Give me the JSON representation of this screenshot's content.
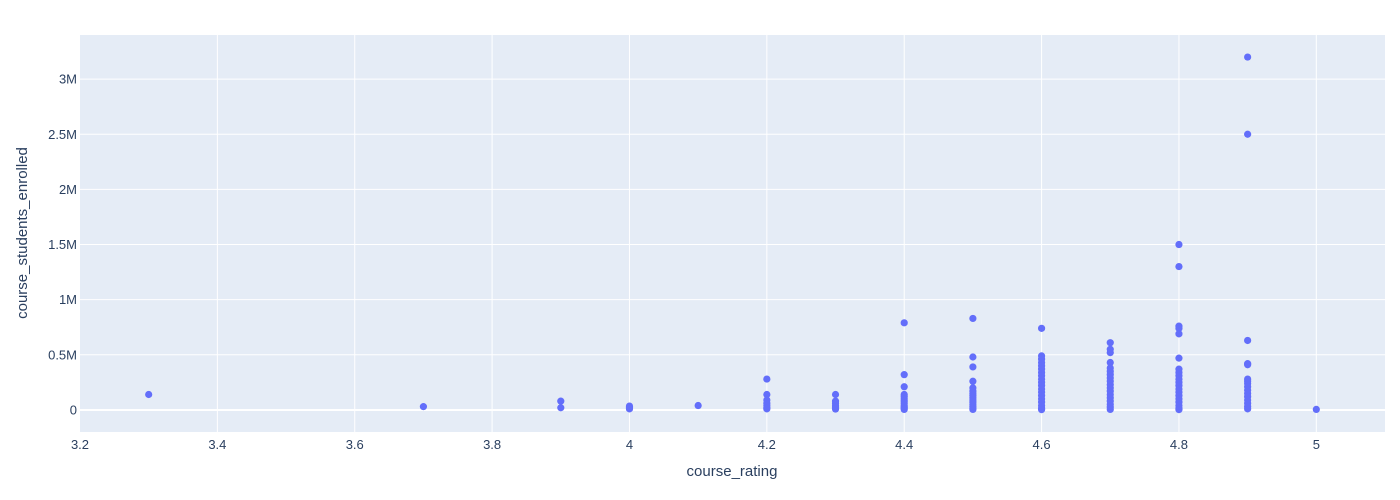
{
  "chart_data": {
    "type": "scatter",
    "title": "",
    "xlabel": "course_rating",
    "ylabel": "course_students_enrolled",
    "xlim": [
      3.2,
      5.1
    ],
    "ylim": [
      -200000,
      3400000
    ],
    "grid": true,
    "x_ticks": [
      {
        "value": 3.2,
        "label": "3.2"
      },
      {
        "value": 3.4,
        "label": "3.4"
      },
      {
        "value": 3.6,
        "label": "3.6"
      },
      {
        "value": 3.8,
        "label": "3.8"
      },
      {
        "value": 4.0,
        "label": "4"
      },
      {
        "value": 4.2,
        "label": "4.2"
      },
      {
        "value": 4.4,
        "label": "4.4"
      },
      {
        "value": 4.6,
        "label": "4.6"
      },
      {
        "value": 4.8,
        "label": "4.8"
      },
      {
        "value": 5.0,
        "label": "5"
      }
    ],
    "y_ticks": [
      {
        "value": 0,
        "label": "0"
      },
      {
        "value": 500000,
        "label": "0.5M"
      },
      {
        "value": 1000000,
        "label": "1M"
      },
      {
        "value": 1500000,
        "label": "1.5M"
      },
      {
        "value": 2000000,
        "label": "2M"
      },
      {
        "value": 2500000,
        "label": "2.5M"
      },
      {
        "value": 3000000,
        "label": "3M"
      }
    ],
    "series": [
      {
        "color": "#636efa",
        "points": [
          [
            3.3,
            140000
          ],
          [
            3.7,
            30000
          ],
          [
            3.9,
            80000
          ],
          [
            3.9,
            20000
          ],
          [
            4.0,
            35000
          ],
          [
            4.0,
            20000
          ],
          [
            4.0,
            10000
          ],
          [
            4.1,
            40000
          ],
          [
            4.2,
            280000
          ],
          [
            4.2,
            140000
          ],
          [
            4.2,
            90000
          ],
          [
            4.2,
            60000
          ],
          [
            4.2,
            40000
          ],
          [
            4.2,
            20000
          ],
          [
            4.2,
            10000
          ],
          [
            4.3,
            140000
          ],
          [
            4.3,
            80000
          ],
          [
            4.3,
            60000
          ],
          [
            4.3,
            40000
          ],
          [
            4.3,
            25000
          ],
          [
            4.3,
            15000
          ],
          [
            4.3,
            8000
          ],
          [
            4.4,
            790000
          ],
          [
            4.4,
            320000
          ],
          [
            4.4,
            210000
          ],
          [
            4.4,
            140000
          ],
          [
            4.4,
            120000
          ],
          [
            4.4,
            100000
          ],
          [
            4.4,
            80000
          ],
          [
            4.4,
            60000
          ],
          [
            4.4,
            40000
          ],
          [
            4.4,
            25000
          ],
          [
            4.4,
            15000
          ],
          [
            4.4,
            5000
          ],
          [
            4.5,
            830000
          ],
          [
            4.5,
            480000
          ],
          [
            4.5,
            390000
          ],
          [
            4.5,
            260000
          ],
          [
            4.5,
            200000
          ],
          [
            4.5,
            170000
          ],
          [
            4.5,
            150000
          ],
          [
            4.5,
            130000
          ],
          [
            4.5,
            110000
          ],
          [
            4.5,
            90000
          ],
          [
            4.5,
            70000
          ],
          [
            4.5,
            50000
          ],
          [
            4.5,
            30000
          ],
          [
            4.5,
            15000
          ],
          [
            4.5,
            5000
          ],
          [
            4.6,
            740000
          ],
          [
            4.6,
            490000
          ],
          [
            4.6,
            460000
          ],
          [
            4.6,
            430000
          ],
          [
            4.6,
            400000
          ],
          [
            4.6,
            370000
          ],
          [
            4.6,
            340000
          ],
          [
            4.6,
            310000
          ],
          [
            4.6,
            280000
          ],
          [
            4.6,
            250000
          ],
          [
            4.6,
            220000
          ],
          [
            4.6,
            190000
          ],
          [
            4.6,
            160000
          ],
          [
            4.6,
            130000
          ],
          [
            4.6,
            100000
          ],
          [
            4.6,
            70000
          ],
          [
            4.6,
            40000
          ],
          [
            4.6,
            15000
          ],
          [
            4.6,
            3000
          ],
          [
            4.7,
            610000
          ],
          [
            4.7,
            550000
          ],
          [
            4.7,
            520000
          ],
          [
            4.7,
            430000
          ],
          [
            4.7,
            380000
          ],
          [
            4.7,
            350000
          ],
          [
            4.7,
            320000
          ],
          [
            4.7,
            290000
          ],
          [
            4.7,
            260000
          ],
          [
            4.7,
            230000
          ],
          [
            4.7,
            200000
          ],
          [
            4.7,
            170000
          ],
          [
            4.7,
            140000
          ],
          [
            4.7,
            110000
          ],
          [
            4.7,
            80000
          ],
          [
            4.7,
            50000
          ],
          [
            4.7,
            25000
          ],
          [
            4.7,
            5000
          ],
          [
            4.8,
            1500000
          ],
          [
            4.8,
            1300000
          ],
          [
            4.8,
            760000
          ],
          [
            4.8,
            740000
          ],
          [
            4.8,
            690000
          ],
          [
            4.8,
            470000
          ],
          [
            4.8,
            370000
          ],
          [
            4.8,
            340000
          ],
          [
            4.8,
            310000
          ],
          [
            4.8,
            280000
          ],
          [
            4.8,
            250000
          ],
          [
            4.8,
            220000
          ],
          [
            4.8,
            190000
          ],
          [
            4.8,
            160000
          ],
          [
            4.8,
            130000
          ],
          [
            4.8,
            100000
          ],
          [
            4.8,
            70000
          ],
          [
            4.8,
            40000
          ],
          [
            4.8,
            15000
          ],
          [
            4.8,
            3000
          ],
          [
            4.9,
            3200000
          ],
          [
            4.9,
            2500000
          ],
          [
            4.9,
            630000
          ],
          [
            4.9,
            420000
          ],
          [
            4.9,
            410000
          ],
          [
            4.9,
            280000
          ],
          [
            4.9,
            260000
          ],
          [
            4.9,
            240000
          ],
          [
            4.9,
            210000
          ],
          [
            4.9,
            180000
          ],
          [
            4.9,
            150000
          ],
          [
            4.9,
            120000
          ],
          [
            4.9,
            90000
          ],
          [
            4.9,
            60000
          ],
          [
            4.9,
            30000
          ],
          [
            4.9,
            10000
          ],
          [
            5.0,
            5000
          ]
        ]
      }
    ]
  }
}
